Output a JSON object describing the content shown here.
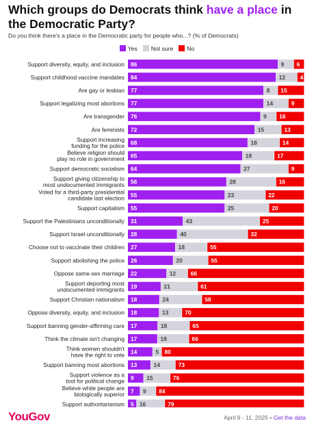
{
  "header": {
    "title_prefix": "Which groups do Democrats think ",
    "title_highlight": "have a place",
    "title_suffix": " in the Democratic Party?",
    "subtitle": "Do you think there's a place in the Democratic party for people who...? (% of Democrats)"
  },
  "footer": {
    "logo": "YouGov",
    "date": "April 9 - 11, 2025 • ",
    "link": "Get the data"
  },
  "colors": {
    "yes": "#a020f0",
    "not_sure": "#d3d4dc",
    "no": "#f00000"
  },
  "chart_data": {
    "type": "bar",
    "orientation": "horizontal",
    "stacked": true,
    "legend_position": "top-center",
    "categories": [
      "Support diversity, equity, and inclusion",
      "Support childhood vaccine mandates",
      "Are gay or lesbian",
      "Support legalizing most abortions",
      "Are transgender",
      "Are feminists",
      "Support increasing funding for the police",
      "Believe religion should play no role in government",
      "Support democratic socialism",
      "Support giving citizenship to most undocumented immigrants",
      "Voted for a third-party presidential candidate last election",
      "Support capitalism",
      "Support the Palestinians unconditionally",
      "Support Israel unconditionally",
      "Choose not to vaccinate their children",
      "Support abolishing the police",
      "Oppose same-sex marriage",
      "Support deporting most undocumented immigrants",
      "Support Christian nationalism",
      "Oppose diversity, equity, and inclusion",
      "Support banning gender-affirming care",
      "Think the climate isn't changing",
      "Think women shouldn't have the right to vote",
      "Support banning most abortions",
      "Support violence as a tool for political change",
      "Believe white people are biologically superior",
      "Support authoritarianism"
    ],
    "series": [
      {
        "name": "Yes",
        "values": [
          86,
          84,
          77,
          77,
          76,
          72,
          68,
          65,
          64,
          56,
          55,
          55,
          31,
          28,
          27,
          26,
          22,
          19,
          18,
          18,
          17,
          17,
          14,
          13,
          9,
          7,
          5
        ]
      },
      {
        "name": "Not sure",
        "values": [
          9,
          12,
          8,
          14,
          9,
          15,
          18,
          18,
          27,
          28,
          23,
          25,
          43,
          40,
          18,
          20,
          12,
          21,
          24,
          13,
          18,
          18,
          5,
          14,
          15,
          9,
          16
        ]
      },
      {
        "name": "No",
        "values": [
          6,
          4,
          15,
          9,
          16,
          13,
          14,
          17,
          9,
          16,
          22,
          20,
          25,
          32,
          55,
          55,
          66,
          61,
          58,
          70,
          65,
          66,
          80,
          73,
          76,
          84,
          79
        ]
      }
    ]
  }
}
